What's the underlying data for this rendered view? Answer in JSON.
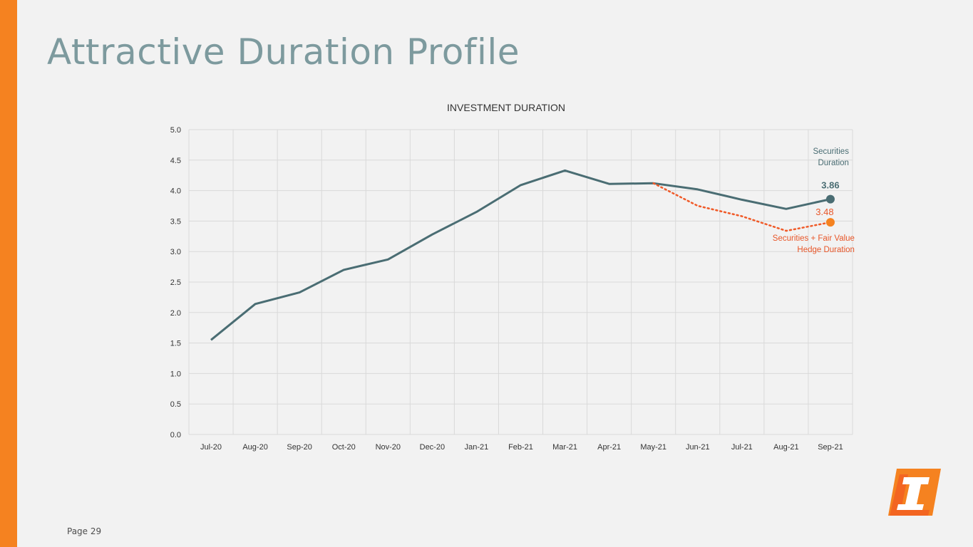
{
  "slide": {
    "title": "Attractive Duration Profile",
    "page_label": "Page 29",
    "accent_color": "#f58220"
  },
  "logo": {
    "icon": "company-logo-icon",
    "colors": [
      "#f58220",
      "#f04e23",
      "#ffffff"
    ]
  },
  "chart_data": {
    "type": "line",
    "title": "INVESTMENT DURATION",
    "xlabel": "",
    "ylabel": "",
    "categories": [
      "Jul-20",
      "Aug-20",
      "Sep-20",
      "Oct-20",
      "Nov-20",
      "Dec-20",
      "Jan-21",
      "Feb-21",
      "Mar-21",
      "Apr-21",
      "May-21",
      "Jun-21",
      "Jul-21",
      "Aug-21",
      "Sep-21"
    ],
    "ylim": [
      0,
      5
    ],
    "yticks": [
      "0.0",
      "0.5",
      "1.0",
      "1.5",
      "2.0",
      "2.5",
      "3.0",
      "3.5",
      "4.0",
      "4.5",
      "5.0"
    ],
    "grid": true,
    "series": [
      {
        "name": "Securities Duration",
        "label_lines": [
          "Securities",
          "Duration"
        ],
        "color": "#4a6d73",
        "style": "solid",
        "values": [
          1.55,
          2.14,
          2.33,
          2.7,
          2.87,
          3.28,
          3.65,
          4.09,
          4.33,
          4.11,
          4.12,
          4.02,
          3.85,
          3.7,
          3.86
        ],
        "end_label": "3.86"
      },
      {
        "name": "Securities + Fair Value Hedge Duration",
        "label_lines": [
          "Securities + Fair Value",
          "Hedge Duration"
        ],
        "color": "#f58220",
        "text_color": "#e8572a",
        "line_color": "#f05a28",
        "style": "dotted",
        "values": [
          null,
          null,
          null,
          null,
          null,
          null,
          null,
          null,
          null,
          null,
          4.12,
          3.75,
          3.58,
          3.34,
          3.48
        ],
        "end_label": "3.48"
      }
    ]
  }
}
